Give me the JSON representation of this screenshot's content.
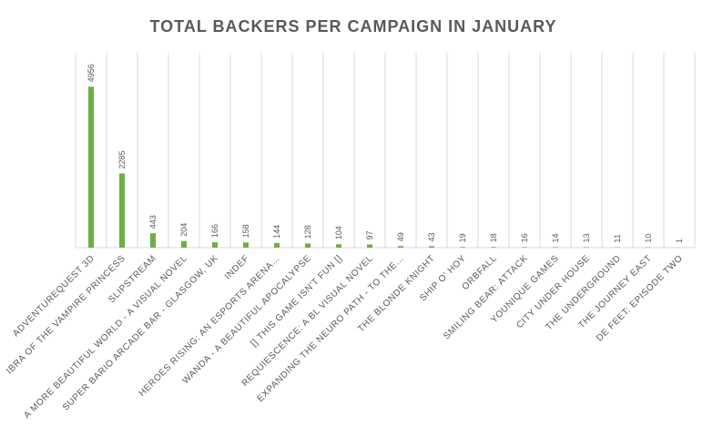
{
  "chart_data": {
    "type": "bar",
    "title": "TOTAL BACKERS PER CAMPAIGN IN JANUARY",
    "categories": [
      "ADVENTUREQUEST 3D",
      "IBRA OF THE VAMPIRE PRINCESS",
      "SLIPSTREAM",
      "A MORE BEAUTIFUL WORLD - A VISUAL NOVEL",
      "SUPER BARIO ARCADE BAR - GLASGOW, UK",
      "INDEF",
      "HEROES RISING: AN ESPORTS ARENA…",
      "WANDA - A BEAUTIFUL APOCALYPSE",
      "[] THIS GAME ISN'T FUN []",
      "REQUIESCENCE: A BL VISUAL NOVEL",
      "EXPANDING THE NEURO PATH - TO THE…",
      "THE BLONDE KNIGHT",
      "SHIP O' HOY",
      "ORBFALL",
      "SMILING BEAR: ATTACK",
      "YOUNIQUE GAMES",
      "CITY UNDER HOUSE",
      "THE UNDERGROUND",
      "THE JOURNEY EAST",
      "DE FEET: EPISODE TWO"
    ],
    "values": [
      4956,
      2285,
      443,
      204,
      166,
      158,
      144,
      128,
      104,
      97,
      49,
      43,
      19,
      18,
      16,
      14,
      13,
      11,
      10,
      1
    ],
    "color": "#70ad47",
    "ylim": [
      0,
      6000
    ],
    "data_labels": true
  }
}
